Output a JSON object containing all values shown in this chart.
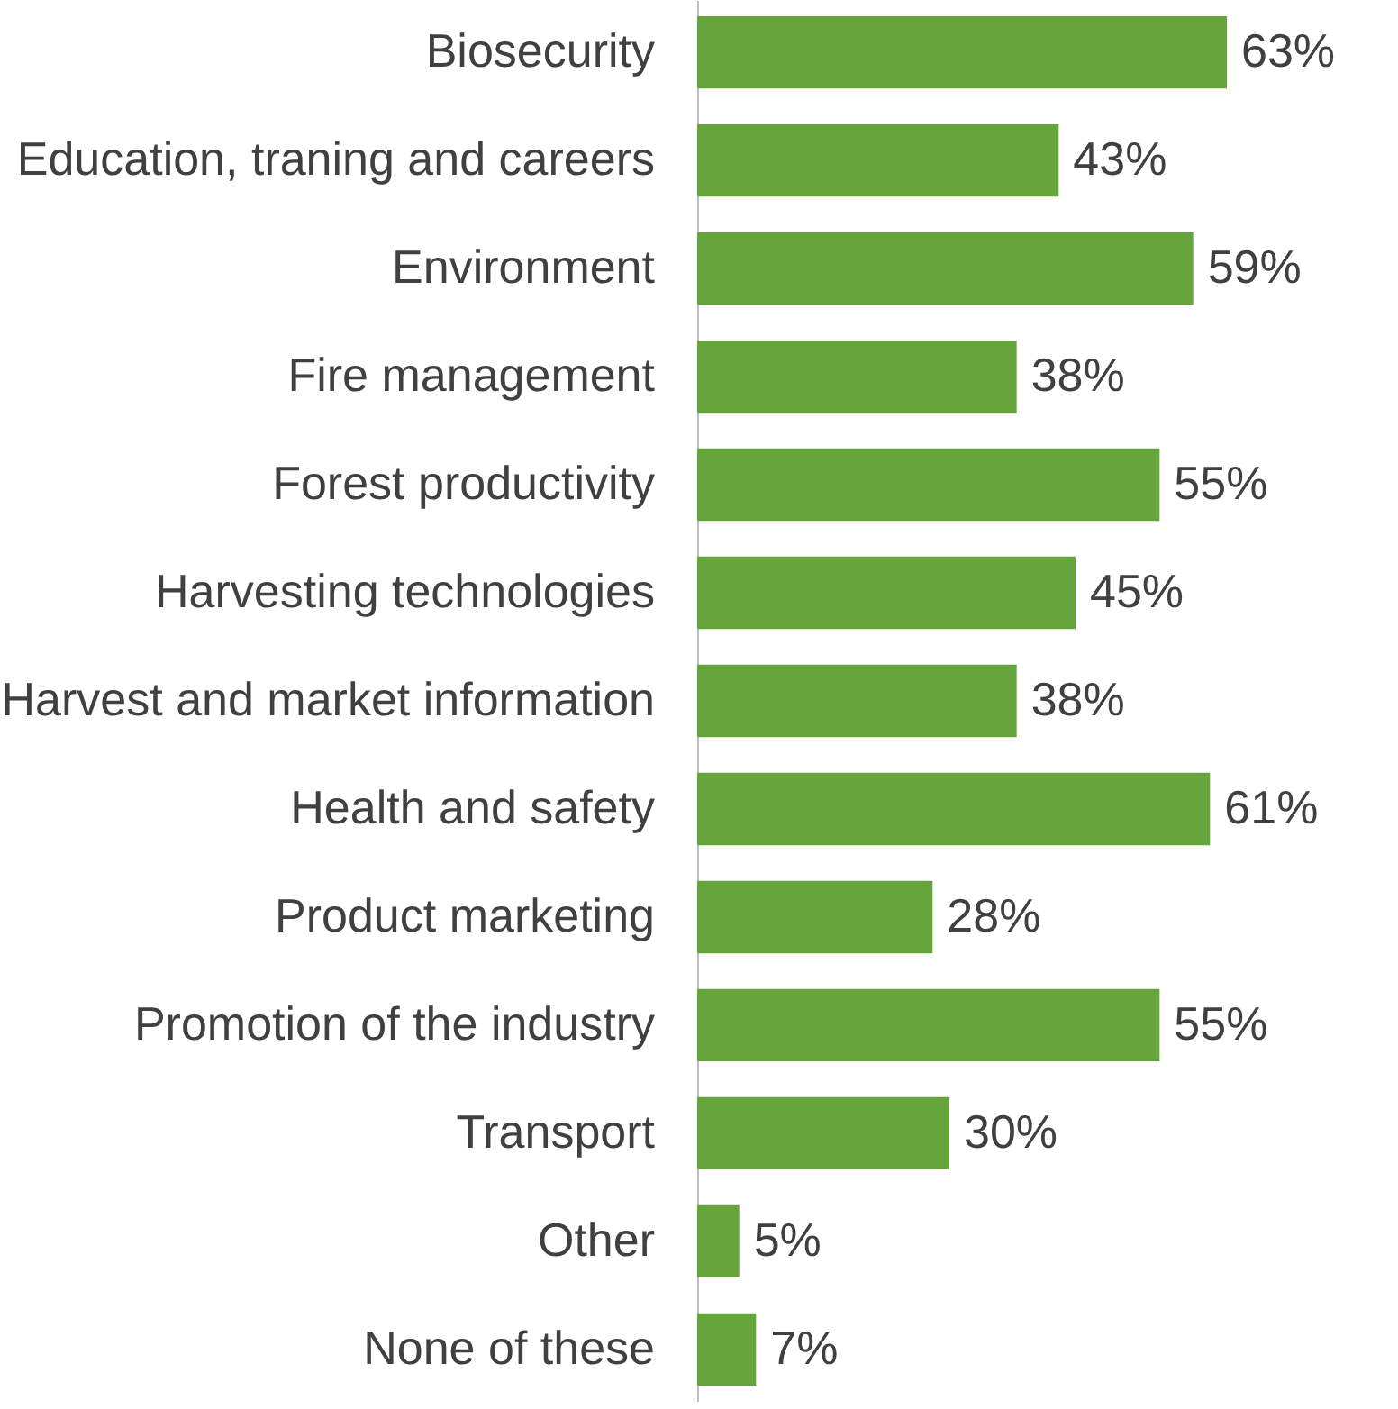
{
  "chart_data": {
    "type": "bar",
    "orientation": "horizontal",
    "categories": [
      "Biosecurity",
      "Education, traning and careers",
      "Environment",
      "Fire management",
      "Forest productivity",
      "Harvesting technologies",
      "Harvest and market information",
      "Health and safety",
      "Product marketing",
      "Promotion of the industry",
      "Transport",
      "Other",
      "None of these"
    ],
    "values": [
      63,
      43,
      59,
      38,
      55,
      45,
      38,
      61,
      28,
      55,
      30,
      5,
      7
    ],
    "value_labels": [
      "63%",
      "43%",
      "59%",
      "38%",
      "55%",
      "45%",
      "38%",
      "61%",
      "28%",
      "55%",
      "30%",
      "5%",
      "7%"
    ],
    "color": "#66a53c",
    "xlim": [
      0,
      78
    ],
    "tick_labels": "y"
  }
}
